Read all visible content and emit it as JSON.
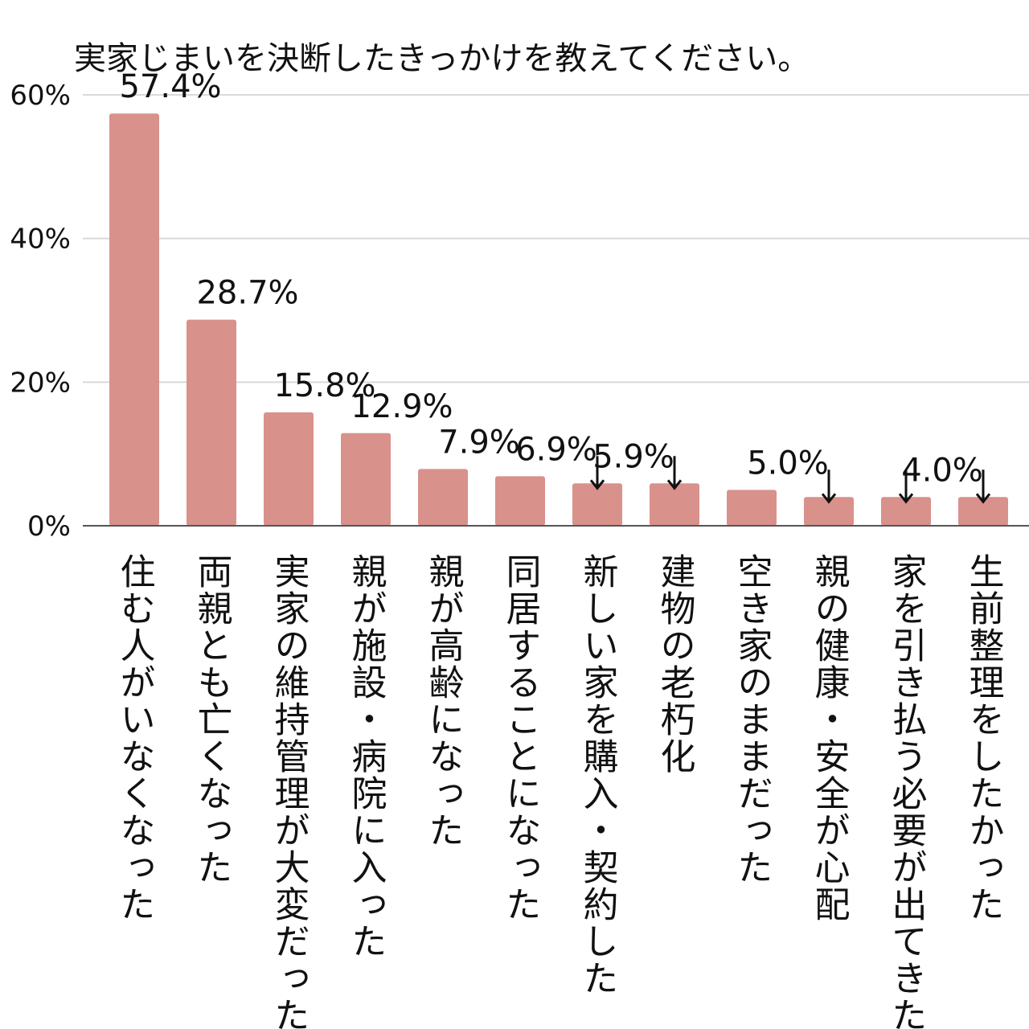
{
  "chart_data": {
    "type": "bar",
    "title": "実家じまいを決断したきっかけを教えてください。",
    "xlabel": "",
    "ylabel": "",
    "ylim": [
      0,
      60
    ],
    "yticks": [
      0,
      20,
      40,
      60
    ],
    "ytick_labels": [
      "0%",
      "20%",
      "40%",
      "60%"
    ],
    "grid": true,
    "bar_color": "#d9918c",
    "categories": [
      "住む人がいなくなった",
      "両親とも亡くなった",
      "実家の維持管理が大変だった",
      "親が施設・病院に入った",
      "親が高齢になった",
      "同居することになった",
      "新しい家を購入・契約した",
      "建物の老朽化",
      "空き家のままだった",
      "親の健康・安全が心配",
      "家を引き払う必要が出てきた",
      "生前整理をしたかった"
    ],
    "values": [
      57.4,
      28.7,
      15.8,
      12.9,
      7.9,
      6.9,
      5.9,
      5.9,
      5.0,
      4.0,
      4.0,
      4.0
    ],
    "data_labels": [
      "57.4%",
      "28.7%",
      "15.8%",
      "12.9%",
      "7.9%",
      "6.9%",
      "5.9%",
      "↓",
      "5.0%",
      "↓",
      "4.0%",
      "↓"
    ],
    "arrow_markers": [
      false,
      false,
      false,
      false,
      false,
      false,
      true,
      false,
      false,
      false,
      true,
      false
    ]
  }
}
